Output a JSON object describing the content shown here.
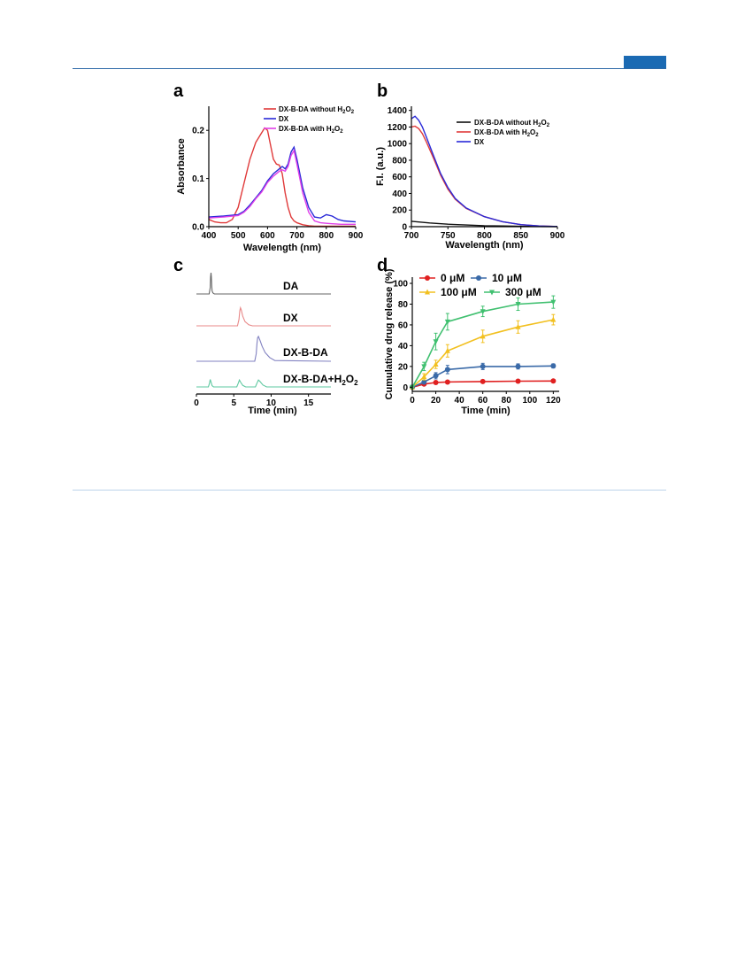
{
  "chart_data": [
    {
      "panel": "a",
      "type": "line",
      "xlabel": "Wavelength (nm)",
      "ylabel": "Absorbance",
      "xlim": [
        400,
        900
      ],
      "ylim": [
        0,
        0.25
      ],
      "xticks": [
        400,
        500,
        600,
        700,
        800,
        900
      ],
      "yticks": [
        0.0,
        0.1,
        0.2
      ],
      "ytick_labels": [
        "0.0",
        "0.1",
        "0.2"
      ],
      "legend_position": "top-right",
      "series": [
        {
          "name": "DX-B-DA without H2O2",
          "color": "#e03a3a",
          "x": [
            400,
            420,
            440,
            460,
            480,
            500,
            520,
            540,
            560,
            580,
            590,
            600,
            610,
            620,
            630,
            640,
            650,
            660,
            670,
            680,
            690,
            700,
            720,
            740,
            760,
            780,
            800,
            820,
            850,
            880,
            900
          ],
          "y": [
            0.015,
            0.01,
            0.008,
            0.008,
            0.015,
            0.04,
            0.09,
            0.14,
            0.175,
            0.195,
            0.205,
            0.2,
            0.17,
            0.14,
            0.13,
            0.128,
            0.11,
            0.07,
            0.04,
            0.02,
            0.012,
            0.008,
            0.004,
            0.002,
            0.001,
            0.001,
            0.001,
            0.001,
            0.001,
            0.001,
            0.001
          ]
        },
        {
          "name": "DX",
          "color": "#2a2ad8",
          "x": [
            400,
            450,
            500,
            520,
            540,
            560,
            580,
            600,
            620,
            640,
            650,
            660,
            670,
            680,
            690,
            700,
            710,
            720,
            740,
            760,
            780,
            800,
            820,
            840,
            860,
            900
          ],
          "y": [
            0.02,
            0.022,
            0.025,
            0.032,
            0.045,
            0.06,
            0.075,
            0.095,
            0.11,
            0.12,
            0.125,
            0.12,
            0.13,
            0.155,
            0.165,
            0.14,
            0.11,
            0.08,
            0.04,
            0.02,
            0.018,
            0.025,
            0.022,
            0.015,
            0.012,
            0.01
          ]
        },
        {
          "name": "DX-B-DA with H2O2",
          "color": "#e040e8",
          "x": [
            400,
            450,
            500,
            520,
            540,
            560,
            580,
            600,
            620,
            640,
            650,
            660,
            670,
            680,
            690,
            700,
            710,
            720,
            740,
            760,
            780,
            800,
            820,
            850,
            900
          ],
          "y": [
            0.018,
            0.02,
            0.023,
            0.03,
            0.042,
            0.058,
            0.072,
            0.092,
            0.105,
            0.115,
            0.118,
            0.115,
            0.125,
            0.148,
            0.158,
            0.13,
            0.1,
            0.07,
            0.03,
            0.012,
            0.008,
            0.007,
            0.006,
            0.005,
            0.005
          ]
        }
      ]
    },
    {
      "panel": "b",
      "type": "line",
      "xlabel": "Wavelength (nm)",
      "ylabel": "F.I. (a.u.)",
      "xlim": [
        700,
        900
      ],
      "ylim": [
        0,
        1450
      ],
      "xticks": [
        700,
        750,
        800,
        850,
        900
      ],
      "yticks": [
        0,
        200,
        400,
        600,
        800,
        1000,
        1200,
        1400
      ],
      "legend_position": "top-right",
      "series": [
        {
          "name": "DX-B-DA without H2O2",
          "color": "#111111",
          "x": [
            700,
            725,
            750,
            775,
            800,
            825,
            850,
            875,
            900
          ],
          "y": [
            65,
            45,
            30,
            20,
            12,
            8,
            4,
            2,
            1
          ]
        },
        {
          "name": "DX-B-DA with H2O2",
          "color": "#e03a3a",
          "x": [
            700,
            705,
            710,
            715,
            720,
            730,
            740,
            750,
            760,
            775,
            800,
            825,
            850,
            875,
            900
          ],
          "y": [
            1200,
            1210,
            1180,
            1120,
            1030,
            830,
            620,
            450,
            330,
            220,
            120,
            60,
            25,
            8,
            2
          ]
        },
        {
          "name": "DX",
          "color": "#2a2ad8",
          "x": [
            700,
            705,
            710,
            715,
            720,
            730,
            740,
            750,
            760,
            775,
            800,
            825,
            850,
            875,
            900
          ],
          "y": [
            1300,
            1330,
            1280,
            1200,
            1090,
            860,
            640,
            470,
            340,
            225,
            120,
            60,
            25,
            8,
            2
          ]
        }
      ]
    },
    {
      "panel": "c",
      "type": "line",
      "xlabel": "Time (min)",
      "xlim": [
        0,
        18
      ],
      "xticks": [
        0,
        5,
        10,
        15
      ],
      "series": [
        {
          "name": "DA",
          "color": "#666666",
          "baseline_offset": 3,
          "x": [
            0,
            1.7,
            1.85,
            1.9,
            1.95,
            2.0,
            2.05,
            2.1,
            2.2,
            2.4,
            18
          ],
          "y": [
            0,
            0,
            0.3,
            0.8,
            1.0,
            0.8,
            0.4,
            0.15,
            0.05,
            0,
            0
          ]
        },
        {
          "name": "DX",
          "color": "#e88888",
          "baseline_offset": 2,
          "x": [
            0,
            5.5,
            5.7,
            5.8,
            5.9,
            6.0,
            6.2,
            6.5,
            7.0,
            7.5,
            18
          ],
          "y": [
            0,
            0,
            0.3,
            0.7,
            0.85,
            0.75,
            0.45,
            0.2,
            0.05,
            0,
            0
          ]
        },
        {
          "name": "DX-B-DA",
          "color": "#8080c0",
          "baseline_offset": 1,
          "x": [
            0,
            7.8,
            8.0,
            8.1,
            8.2,
            8.3,
            8.5,
            8.8,
            9.2,
            9.8,
            10.5,
            18
          ],
          "y": [
            0,
            0,
            0.3,
            0.7,
            0.95,
            1.0,
            0.85,
            0.6,
            0.35,
            0.15,
            0.03,
            0
          ]
        },
        {
          "name": "DX-B-DA+H2O2",
          "color": "#5ec8a0",
          "baseline_offset": 0,
          "x": [
            0,
            1.6,
            1.75,
            1.85,
            1.95,
            2.1,
            2.3,
            5.4,
            5.6,
            5.75,
            5.9,
            6.2,
            6.6,
            7.9,
            8.1,
            8.3,
            8.5,
            8.9,
            9.4,
            18
          ],
          "y": [
            0,
            0,
            0.15,
            0.3,
            0.2,
            0.05,
            0,
            0,
            0.15,
            0.28,
            0.2,
            0.06,
            0,
            0,
            0.15,
            0.28,
            0.22,
            0.08,
            0,
            0
          ]
        }
      ],
      "labels": [
        "DA",
        "DX",
        "DX-B-DA",
        "DX-B-DA+H2O2"
      ]
    },
    {
      "panel": "d",
      "type": "line",
      "xlabel": "Time (min)",
      "ylabel": "Cumulative drug release (%)",
      "xlim": [
        0,
        125
      ],
      "ylim": [
        -4,
        106
      ],
      "xticks": [
        0,
        20,
        40,
        60,
        80,
        100,
        120
      ],
      "yticks": [
        0,
        20,
        40,
        60,
        80,
        100
      ],
      "legend_position": "top",
      "x": [
        0,
        10,
        20,
        30,
        60,
        90,
        120
      ],
      "series": [
        {
          "name": "0 μM",
          "color": "#e02020",
          "marker": "circle",
          "values": [
            0,
            3,
            4.5,
            5,
            5.5,
            5.8,
            6
          ],
          "errors": [
            0.5,
            1,
            1,
            1,
            1,
            1.2,
            1.5
          ]
        },
        {
          "name": "10 μM",
          "color": "#3a6aa8",
          "marker": "circle",
          "values": [
            0,
            5,
            11,
            17,
            20,
            20,
            20.5
          ],
          "errors": [
            0.5,
            1.5,
            3,
            4,
            3,
            2.5,
            2
          ]
        },
        {
          "name": "100 μM",
          "color": "#f2c020",
          "marker": "triangle-up",
          "values": [
            0,
            10,
            22,
            35,
            49,
            58,
            65
          ],
          "errors": [
            1,
            3,
            4,
            6,
            6,
            6,
            5
          ]
        },
        {
          "name": "300 μM",
          "color": "#40c070",
          "marker": "triangle-down",
          "values": [
            0,
            20,
            44,
            63,
            73,
            80,
            82
          ],
          "errors": [
            1,
            4,
            8,
            8,
            5,
            6,
            6
          ]
        }
      ]
    }
  ],
  "panels": {
    "a": {
      "letter": "a",
      "legend": [
        "DX-B-DA without H",
        "DX",
        "DX-B-DA with H"
      ],
      "legend_sub": "2",
      "legend_tail": "O"
    },
    "b": {
      "letter": "b",
      "legend": [
        "DX-B-DA without H",
        "DX-B-DA with H",
        "DX"
      ],
      "legend_sub": "2",
      "legend_tail": "O"
    },
    "c": {
      "letter": "c"
    },
    "d": {
      "letter": "d"
    }
  },
  "colors": {
    "rule": "#2f6aa8",
    "badge": "#1b6ab3"
  }
}
